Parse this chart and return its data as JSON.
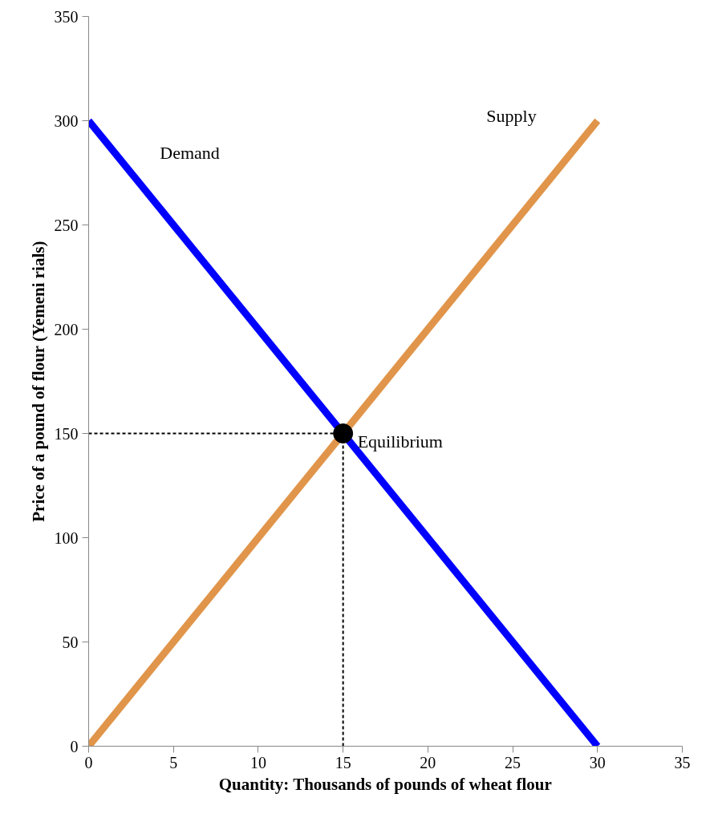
{
  "chart_data": {
    "type": "line",
    "xlabel": "Quantity: Thousands of pounds of wheat flour",
    "ylabel": "Price of a pound of flour (Yemeni rials)",
    "xlim": [
      0,
      35
    ],
    "ylim": [
      0,
      350
    ],
    "xticks": [
      0,
      5,
      10,
      15,
      20,
      25,
      30,
      35
    ],
    "yticks": [
      0,
      50,
      100,
      150,
      200,
      250,
      300,
      350
    ],
    "grid": false,
    "marker": "none",
    "series": [
      {
        "name": "Demand",
        "color": "#0000ff",
        "x": [
          0,
          30
        ],
        "values": [
          300,
          0
        ]
      },
      {
        "name": "Supply",
        "color": "#e0954a",
        "x": [
          0,
          30
        ],
        "values": [
          0,
          300
        ]
      },
      {
        "type": "line",
        "color": "#000000",
        "line_style": "dashed",
        "x": [
          0,
          15
        ],
        "values": [
          150,
          150
        ]
      },
      {
        "type": "line",
        "color": "#000000",
        "line_style": "dashed",
        "x": [
          15,
          15
        ],
        "values": [
          0,
          150
        ]
      },
      {
        "type": "scatter",
        "color": "#000000",
        "marker": "circle",
        "x": [
          15
        ],
        "values": [
          150
        ]
      }
    ],
    "annotations": [
      {
        "text": "Equilibrium",
        "x": 15,
        "y": 150
      }
    ]
  }
}
